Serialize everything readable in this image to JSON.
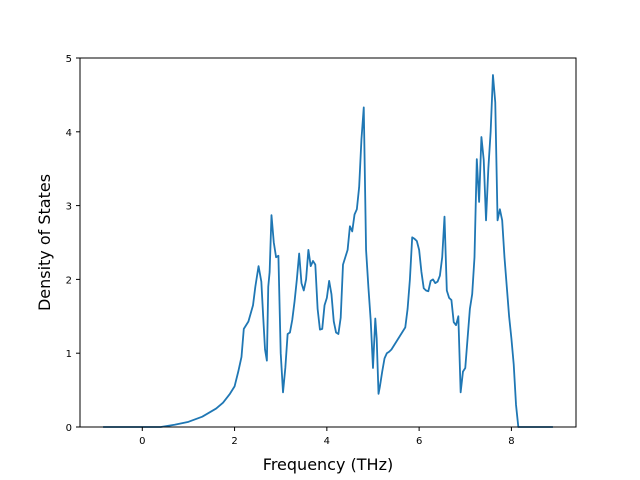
{
  "chart_data": {
    "type": "line",
    "title": "",
    "xlabel": "Frequency (THz)",
    "ylabel": "Density of States",
    "xlim": [
      -1.35,
      9.4
    ],
    "ylim": [
      0,
      5
    ],
    "xticks": [
      0,
      2,
      4,
      6,
      8
    ],
    "yticks": [
      0,
      1,
      2,
      3,
      4,
      5
    ],
    "grid": false,
    "legend": "none",
    "series": [
      {
        "color": "#1f77b4",
        "x": [
          -0.85,
          -0.4,
          0.0,
          0.4,
          0.7,
          1.0,
          1.3,
          1.6,
          1.75,
          1.9,
          2.0,
          2.08,
          2.15,
          2.2,
          2.3,
          2.4,
          2.45,
          2.52,
          2.58,
          2.62,
          2.66,
          2.7,
          2.73,
          2.76,
          2.8,
          2.85,
          2.9,
          2.95,
          3.0,
          3.05,
          3.1,
          3.15,
          3.2,
          3.25,
          3.3,
          3.35,
          3.4,
          3.45,
          3.5,
          3.55,
          3.6,
          3.65,
          3.7,
          3.75,
          3.8,
          3.85,
          3.9,
          3.95,
          4.0,
          4.05,
          4.1,
          4.15,
          4.2,
          4.25,
          4.3,
          4.35,
          4.4,
          4.45,
          4.5,
          4.55,
          4.6,
          4.65,
          4.7,
          4.75,
          4.8,
          4.85,
          4.9,
          4.95,
          5.0,
          5.05,
          5.08,
          5.12,
          5.15,
          5.2,
          5.25,
          5.3,
          5.35,
          5.4,
          5.5,
          5.6,
          5.7,
          5.75,
          5.8,
          5.85,
          5.9,
          5.95,
          6.0,
          6.05,
          6.1,
          6.15,
          6.2,
          6.25,
          6.3,
          6.35,
          6.4,
          6.45,
          6.5,
          6.55,
          6.6,
          6.65,
          6.7,
          6.75,
          6.8,
          6.85,
          6.9,
          6.95,
          7.0,
          7.05,
          7.1,
          7.15,
          7.2,
          7.25,
          7.3,
          7.35,
          7.4,
          7.45,
          7.5,
          7.55,
          7.6,
          7.65,
          7.7,
          7.75,
          7.8,
          7.85,
          7.9,
          7.95,
          8.0,
          8.05,
          8.1,
          8.15,
          8.5,
          8.9
        ],
        "y": [
          0.0,
          0.0,
          0.0,
          0.0,
          0.03,
          0.07,
          0.14,
          0.25,
          0.33,
          0.45,
          0.55,
          0.75,
          0.95,
          1.33,
          1.43,
          1.65,
          1.9,
          2.18,
          1.97,
          1.5,
          1.05,
          0.9,
          1.9,
          2.1,
          2.87,
          2.5,
          2.3,
          2.32,
          1.0,
          0.47,
          0.8,
          1.26,
          1.28,
          1.45,
          1.7,
          2.0,
          2.35,
          1.95,
          1.85,
          2.0,
          2.4,
          2.18,
          2.25,
          2.2,
          1.6,
          1.32,
          1.33,
          1.65,
          1.75,
          1.98,
          1.8,
          1.43,
          1.28,
          1.26,
          1.48,
          2.2,
          2.3,
          2.4,
          2.72,
          2.65,
          2.88,
          2.95,
          3.25,
          3.9,
          4.33,
          2.4,
          1.9,
          1.45,
          0.8,
          1.47,
          1.2,
          0.45,
          0.55,
          0.75,
          0.93,
          1.0,
          1.02,
          1.05,
          1.15,
          1.25,
          1.35,
          1.6,
          2.0,
          2.57,
          2.55,
          2.52,
          2.4,
          2.1,
          1.88,
          1.85,
          1.84,
          1.98,
          2.0,
          1.95,
          1.97,
          2.05,
          2.3,
          2.85,
          1.85,
          1.75,
          1.72,
          1.42,
          1.38,
          1.5,
          0.47,
          0.75,
          0.8,
          1.2,
          1.6,
          1.8,
          2.3,
          3.63,
          3.05,
          3.93,
          3.62,
          2.8,
          3.5,
          4.0,
          4.77,
          4.4,
          2.8,
          2.95,
          2.8,
          2.3,
          1.9,
          1.5,
          1.2,
          0.85,
          0.3,
          0.0,
          0.0,
          0.0
        ]
      }
    ]
  }
}
